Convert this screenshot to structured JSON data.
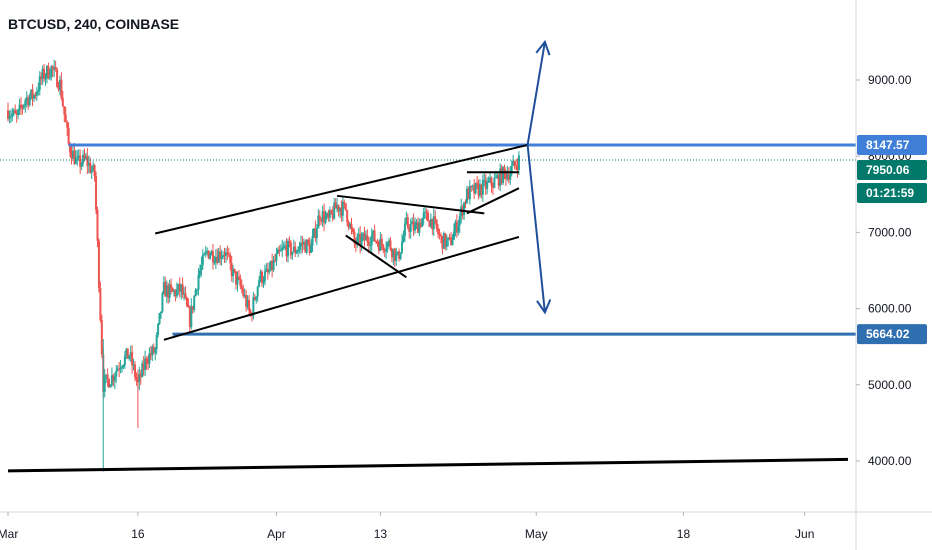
{
  "header": {
    "symbol": "BTCUSD, 240, COINBASE"
  },
  "colors": {
    "up": "#26a69a",
    "down": "#ef5350",
    "wick": "#555555",
    "resistance": "#3f7fd8",
    "support": "#2f6fb0",
    "arrows": "#1f4e9a",
    "trendlines": "#000000",
    "last_price": "#00796b",
    "axis_text": "#131722"
  },
  "chart_data": {
    "type": "candlestick",
    "title": "BTCUSD, 240, COINBASE",
    "ylim": [
      3330,
      10050
    ],
    "price_ticks": [
      "9000.00",
      "8000.00",
      "7000.00",
      "6000.00",
      "5000.00",
      "4000.00"
    ],
    "date_ticks": [
      "Mar",
      "16",
      "Apr",
      "13",
      "May",
      "18",
      "Jun"
    ],
    "date_range": [
      "2020-03-01",
      "2020-06-06"
    ],
    "grid": false,
    "price_tags": [
      {
        "label": "8147.57",
        "kind": "resistance"
      },
      {
        "label": "7950.06",
        "kind": "last"
      },
      {
        "label": "01:21:59",
        "kind": "countdown"
      },
      {
        "label": "5664.02",
        "kind": "support"
      }
    ],
    "horizontal_levels": [
      {
        "price": 8147.57,
        "from": "2020-03-08",
        "kind": "resistance"
      },
      {
        "price": 5664.02,
        "from": "2020-03-20",
        "kind": "support"
      },
      {
        "price": 7950.06,
        "from": "2020-03-01",
        "kind": "last-dotted"
      }
    ],
    "trendlines": [
      {
        "from": [
          "2020-03-18",
          6985
        ],
        "to": [
          "2020-04-30",
          8147.57
        ],
        "width": 2
      },
      {
        "from": [
          "2020-03-19",
          5590
        ],
        "to": [
          "2020-04-29",
          6940
        ],
        "width": 2
      },
      {
        "from": [
          "2020-04-08",
          7480
        ],
        "to": [
          "2020-04-25",
          7250
        ],
        "width": 2
      },
      {
        "from": [
          "2020-04-09",
          6960
        ],
        "to": [
          "2020-04-16",
          6410
        ],
        "width": 2
      },
      {
        "from": [
          "2020-04-23",
          7790
        ],
        "to": [
          "2020-04-29",
          7790
        ],
        "width": 2
      },
      {
        "from": [
          "2020-04-23",
          7250
        ],
        "to": [
          "2020-04-29",
          7580
        ],
        "width": 2
      },
      {
        "from": [
          "2020-03-01",
          3870
        ],
        "to": [
          "2020-06-06",
          4020
        ],
        "width": 3
      }
    ],
    "arrows": [
      {
        "from": [
          "2020-04-30",
          8147.57
        ],
        "to": [
          "2020-05-02",
          9500
        ]
      },
      {
        "from": [
          "2020-04-30",
          8147.57
        ],
        "to": [
          "2020-05-02",
          5950
        ]
      }
    ],
    "price_path": [
      [
        "2020-03-01",
        8600
      ],
      [
        "2020-03-02",
        8500
      ],
      [
        "2020-03-03",
        8750
      ],
      [
        "2020-03-04",
        8800
      ],
      [
        "2020-03-05",
        9050
      ],
      [
        "2020-03-06",
        9150
      ],
      [
        "2020-03-07",
        8950
      ],
      [
        "2020-03-08",
        8150
      ],
      [
        "2020-03-09",
        7900
      ],
      [
        "2020-03-10",
        7950
      ],
      [
        "2020-03-11",
        7750
      ],
      [
        "2020-03-12",
        5000
      ],
      [
        "2020-03-13",
        5100
      ],
      [
        "2020-03-14",
        5300
      ],
      [
        "2020-03-15",
        5400
      ],
      [
        "2020-03-16",
        5000
      ],
      [
        "2020-03-17",
        5350
      ],
      [
        "2020-03-18",
        5450
      ],
      [
        "2020-03-19",
        6250
      ],
      [
        "2020-03-20",
        6200
      ],
      [
        "2020-03-21",
        6250
      ],
      [
        "2020-03-22",
        5850
      ],
      [
        "2020-03-23",
        6450
      ],
      [
        "2020-03-24",
        6750
      ],
      [
        "2020-03-25",
        6700
      ],
      [
        "2020-03-26",
        6750
      ],
      [
        "2020-03-27",
        6450
      ],
      [
        "2020-03-28",
        6250
      ],
      [
        "2020-03-29",
        5900
      ],
      [
        "2020-03-30",
        6400
      ],
      [
        "2020-03-31",
        6450
      ],
      [
        "2020-04-01",
        6650
      ],
      [
        "2020-04-02",
        6800
      ],
      [
        "2020-04-03",
        6750
      ],
      [
        "2020-04-04",
        6850
      ],
      [
        "2020-04-05",
        6800
      ],
      [
        "2020-04-06",
        7250
      ],
      [
        "2020-04-07",
        7150
      ],
      [
        "2020-04-08",
        7350
      ],
      [
        "2020-04-09",
        7300
      ],
      [
        "2020-04-10",
        6850
      ],
      [
        "2020-04-11",
        6900
      ],
      [
        "2020-04-12",
        6950
      ],
      [
        "2020-04-13",
        6850
      ],
      [
        "2020-04-14",
        6850
      ],
      [
        "2020-04-15",
        6650
      ],
      [
        "2020-04-16",
        7100
      ],
      [
        "2020-04-17",
        7050
      ],
      [
        "2020-04-18",
        7200
      ],
      [
        "2020-04-19",
        7150
      ],
      [
        "2020-04-20",
        6900
      ],
      [
        "2020-04-21",
        6850
      ],
      [
        "2020-04-22",
        7150
      ],
      [
        "2020-04-23",
        7500
      ],
      [
        "2020-04-24",
        7550
      ],
      [
        "2020-04-25",
        7600
      ],
      [
        "2020-04-26",
        7650
      ],
      [
        "2020-04-27",
        7750
      ],
      [
        "2020-04-28",
        7800
      ],
      [
        "2020-04-29",
        7950
      ]
    ]
  }
}
